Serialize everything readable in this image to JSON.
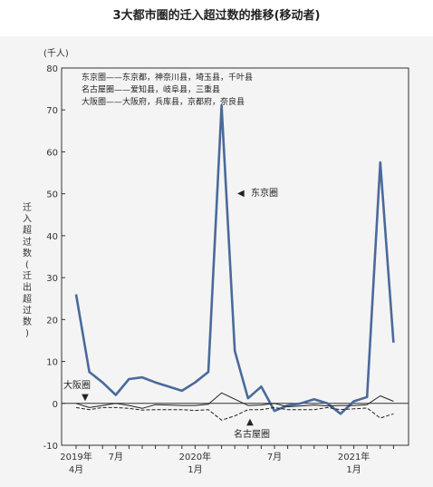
{
  "chart_data": {
    "type": "line",
    "title": "3大都市圏的迁入超过数的推移(移动者)",
    "unit_label": "(千人)",
    "ylabel_chars": [
      "迁",
      "入",
      "超",
      "过",
      "数",
      "(",
      "迁",
      "出",
      "超",
      "过",
      "数",
      ")"
    ],
    "ylim": [
      -10,
      80
    ],
    "yticks": [
      -10,
      0,
      10,
      20,
      30,
      40,
      50,
      60,
      70,
      80
    ],
    "x_tick_labels": [
      {
        "index": 0,
        "lines": [
          "2019年",
          "4月"
        ]
      },
      {
        "index": 3,
        "lines": [
          "7月"
        ]
      },
      {
        "index": 9,
        "lines": [
          "2020年",
          "1月"
        ]
      },
      {
        "index": 15,
        "lines": [
          "7月"
        ]
      },
      {
        "index": 21,
        "lines": [
          "2021年",
          "1月"
        ]
      }
    ],
    "n_points": 25,
    "series": [
      {
        "name": "东京圈",
        "style": "thick",
        "color": "#4a6a9a",
        "values": [
          26,
          7.5,
          5,
          2,
          5.8,
          6.2,
          5,
          4,
          3,
          5,
          7.5,
          71,
          12.5,
          1.2,
          4,
          -1.8,
          -0.5,
          0,
          1,
          0,
          -2.5,
          0.5,
          1.5,
          57.5,
          14.5
        ]
      },
      {
        "name": "大阪圈",
        "style": "solid",
        "color": "#222222",
        "values": [
          0,
          -1,
          -0.5,
          0,
          -0.5,
          -1.2,
          -0.3,
          -0.4,
          -0.5,
          -0.5,
          -0.2,
          2.5,
          1,
          -0.5,
          -0.4,
          0,
          -0.8,
          -0.6,
          -0.4,
          -0.6,
          -0.5,
          -0.5,
          -0.3,
          1.8,
          0.5
        ]
      },
      {
        "name": "名古屋圈",
        "style": "dashed",
        "color": "#222222",
        "values": [
          -1,
          -1.5,
          -1,
          -1,
          -1.2,
          -1.6,
          -1.5,
          -1.5,
          -1.5,
          -1.7,
          -1.5,
          -4,
          -3,
          -1.5,
          -1.5,
          -1,
          -1.5,
          -1.5,
          -1.5,
          -1,
          -1.5,
          -1.3,
          -1.1,
          -3.5,
          -2.5
        ]
      }
    ],
    "legend_notes": [
      "东京圈——东京都，神奈川县，埼玉县，千叶县",
      "名古屋圈——爱知县，岐阜县，三重县",
      "大阪圈——大阪府，兵库县，京都府，奈良县"
    ],
    "annotations": {
      "tokyo": "东京圈",
      "osaka": "大阪圈",
      "nagoya": "名古屋圈",
      "tokyo_marker": "◀",
      "osaka_marker": "▼",
      "nagoya_marker": "▲"
    },
    "grid": false,
    "zero_line": true
  }
}
